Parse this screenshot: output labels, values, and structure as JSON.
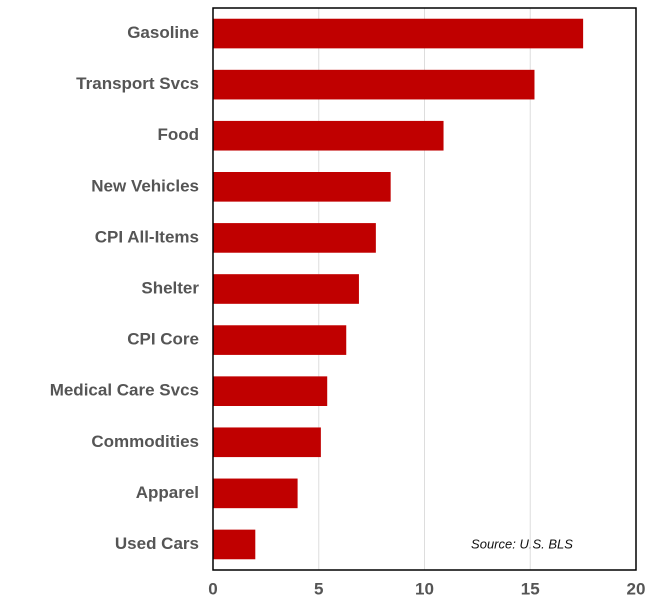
{
  "chart_data": {
    "type": "bar",
    "orientation": "horizontal",
    "categories": [
      "Gasoline",
      "Transport Svcs",
      "Food",
      "New Vehicles",
      "CPI All-Items",
      "Shelter",
      "CPI Core",
      "Medical Care Svcs",
      "Commodities",
      "Apparel",
      "Used Cars"
    ],
    "values": [
      17.5,
      15.2,
      10.9,
      8.4,
      7.7,
      6.9,
      6.3,
      5.4,
      5.1,
      4.0,
      2.0
    ],
    "color": "#c00000",
    "xlim": [
      0,
      20
    ],
    "xticks": [
      0,
      5,
      10,
      15,
      20
    ],
    "grid": true,
    "annotation": "Source: U.S. BLS"
  }
}
